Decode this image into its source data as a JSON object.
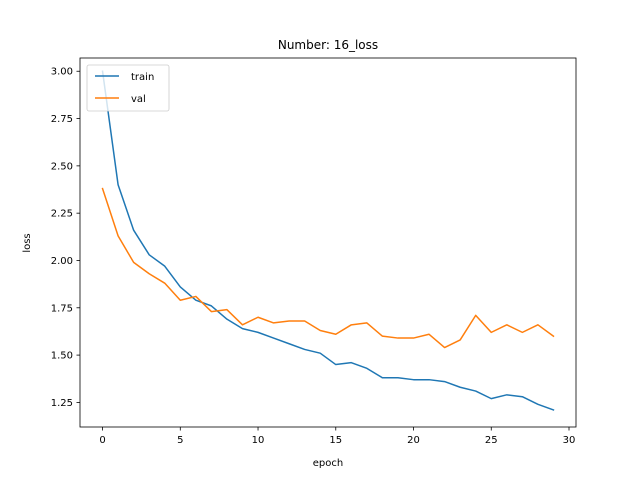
{
  "chart_data": {
    "type": "line",
    "title": "Number: 16_loss",
    "xlabel": "epoch",
    "ylabel": "loss",
    "xlim": [
      -1.45,
      30.45
    ],
    "ylim": [
      1.12,
      3.07
    ],
    "xticks": [
      0,
      5,
      10,
      15,
      20,
      25,
      30
    ],
    "yticks": [
      1.25,
      1.5,
      1.75,
      2.0,
      2.25,
      2.5,
      2.75,
      3.0
    ],
    "xtick_labels": [
      "0",
      "5",
      "10",
      "15",
      "20",
      "25",
      "30"
    ],
    "ytick_labels": [
      "1.25",
      "1.50",
      "1.75",
      "2.00",
      "2.25",
      "2.50",
      "2.75",
      "3.00"
    ],
    "grid": false,
    "legend_position": "top-left",
    "x": [
      0,
      1,
      2,
      3,
      4,
      5,
      6,
      7,
      8,
      9,
      10,
      11,
      12,
      13,
      14,
      15,
      16,
      17,
      18,
      19,
      20,
      21,
      22,
      23,
      24,
      25,
      26,
      27,
      28,
      29
    ],
    "series": [
      {
        "name": "train",
        "color": "#1f77b4",
        "values": [
          3.0,
          2.4,
          2.16,
          2.03,
          1.97,
          1.86,
          1.79,
          1.76,
          1.69,
          1.64,
          1.62,
          1.59,
          1.56,
          1.53,
          1.51,
          1.45,
          1.46,
          1.43,
          1.38,
          1.38,
          1.37,
          1.37,
          1.36,
          1.33,
          1.31,
          1.27,
          1.29,
          1.28,
          1.24,
          1.21
        ]
      },
      {
        "name": "val",
        "color": "#ff7f0e",
        "values": [
          2.38,
          2.13,
          1.99,
          1.93,
          1.88,
          1.79,
          1.81,
          1.73,
          1.74,
          1.66,
          1.7,
          1.67,
          1.68,
          1.68,
          1.63,
          1.61,
          1.66,
          1.67,
          1.6,
          1.59,
          1.59,
          1.61,
          1.54,
          1.58,
          1.71,
          1.62,
          1.66,
          1.62,
          1.66,
          1.6
        ]
      }
    ]
  }
}
